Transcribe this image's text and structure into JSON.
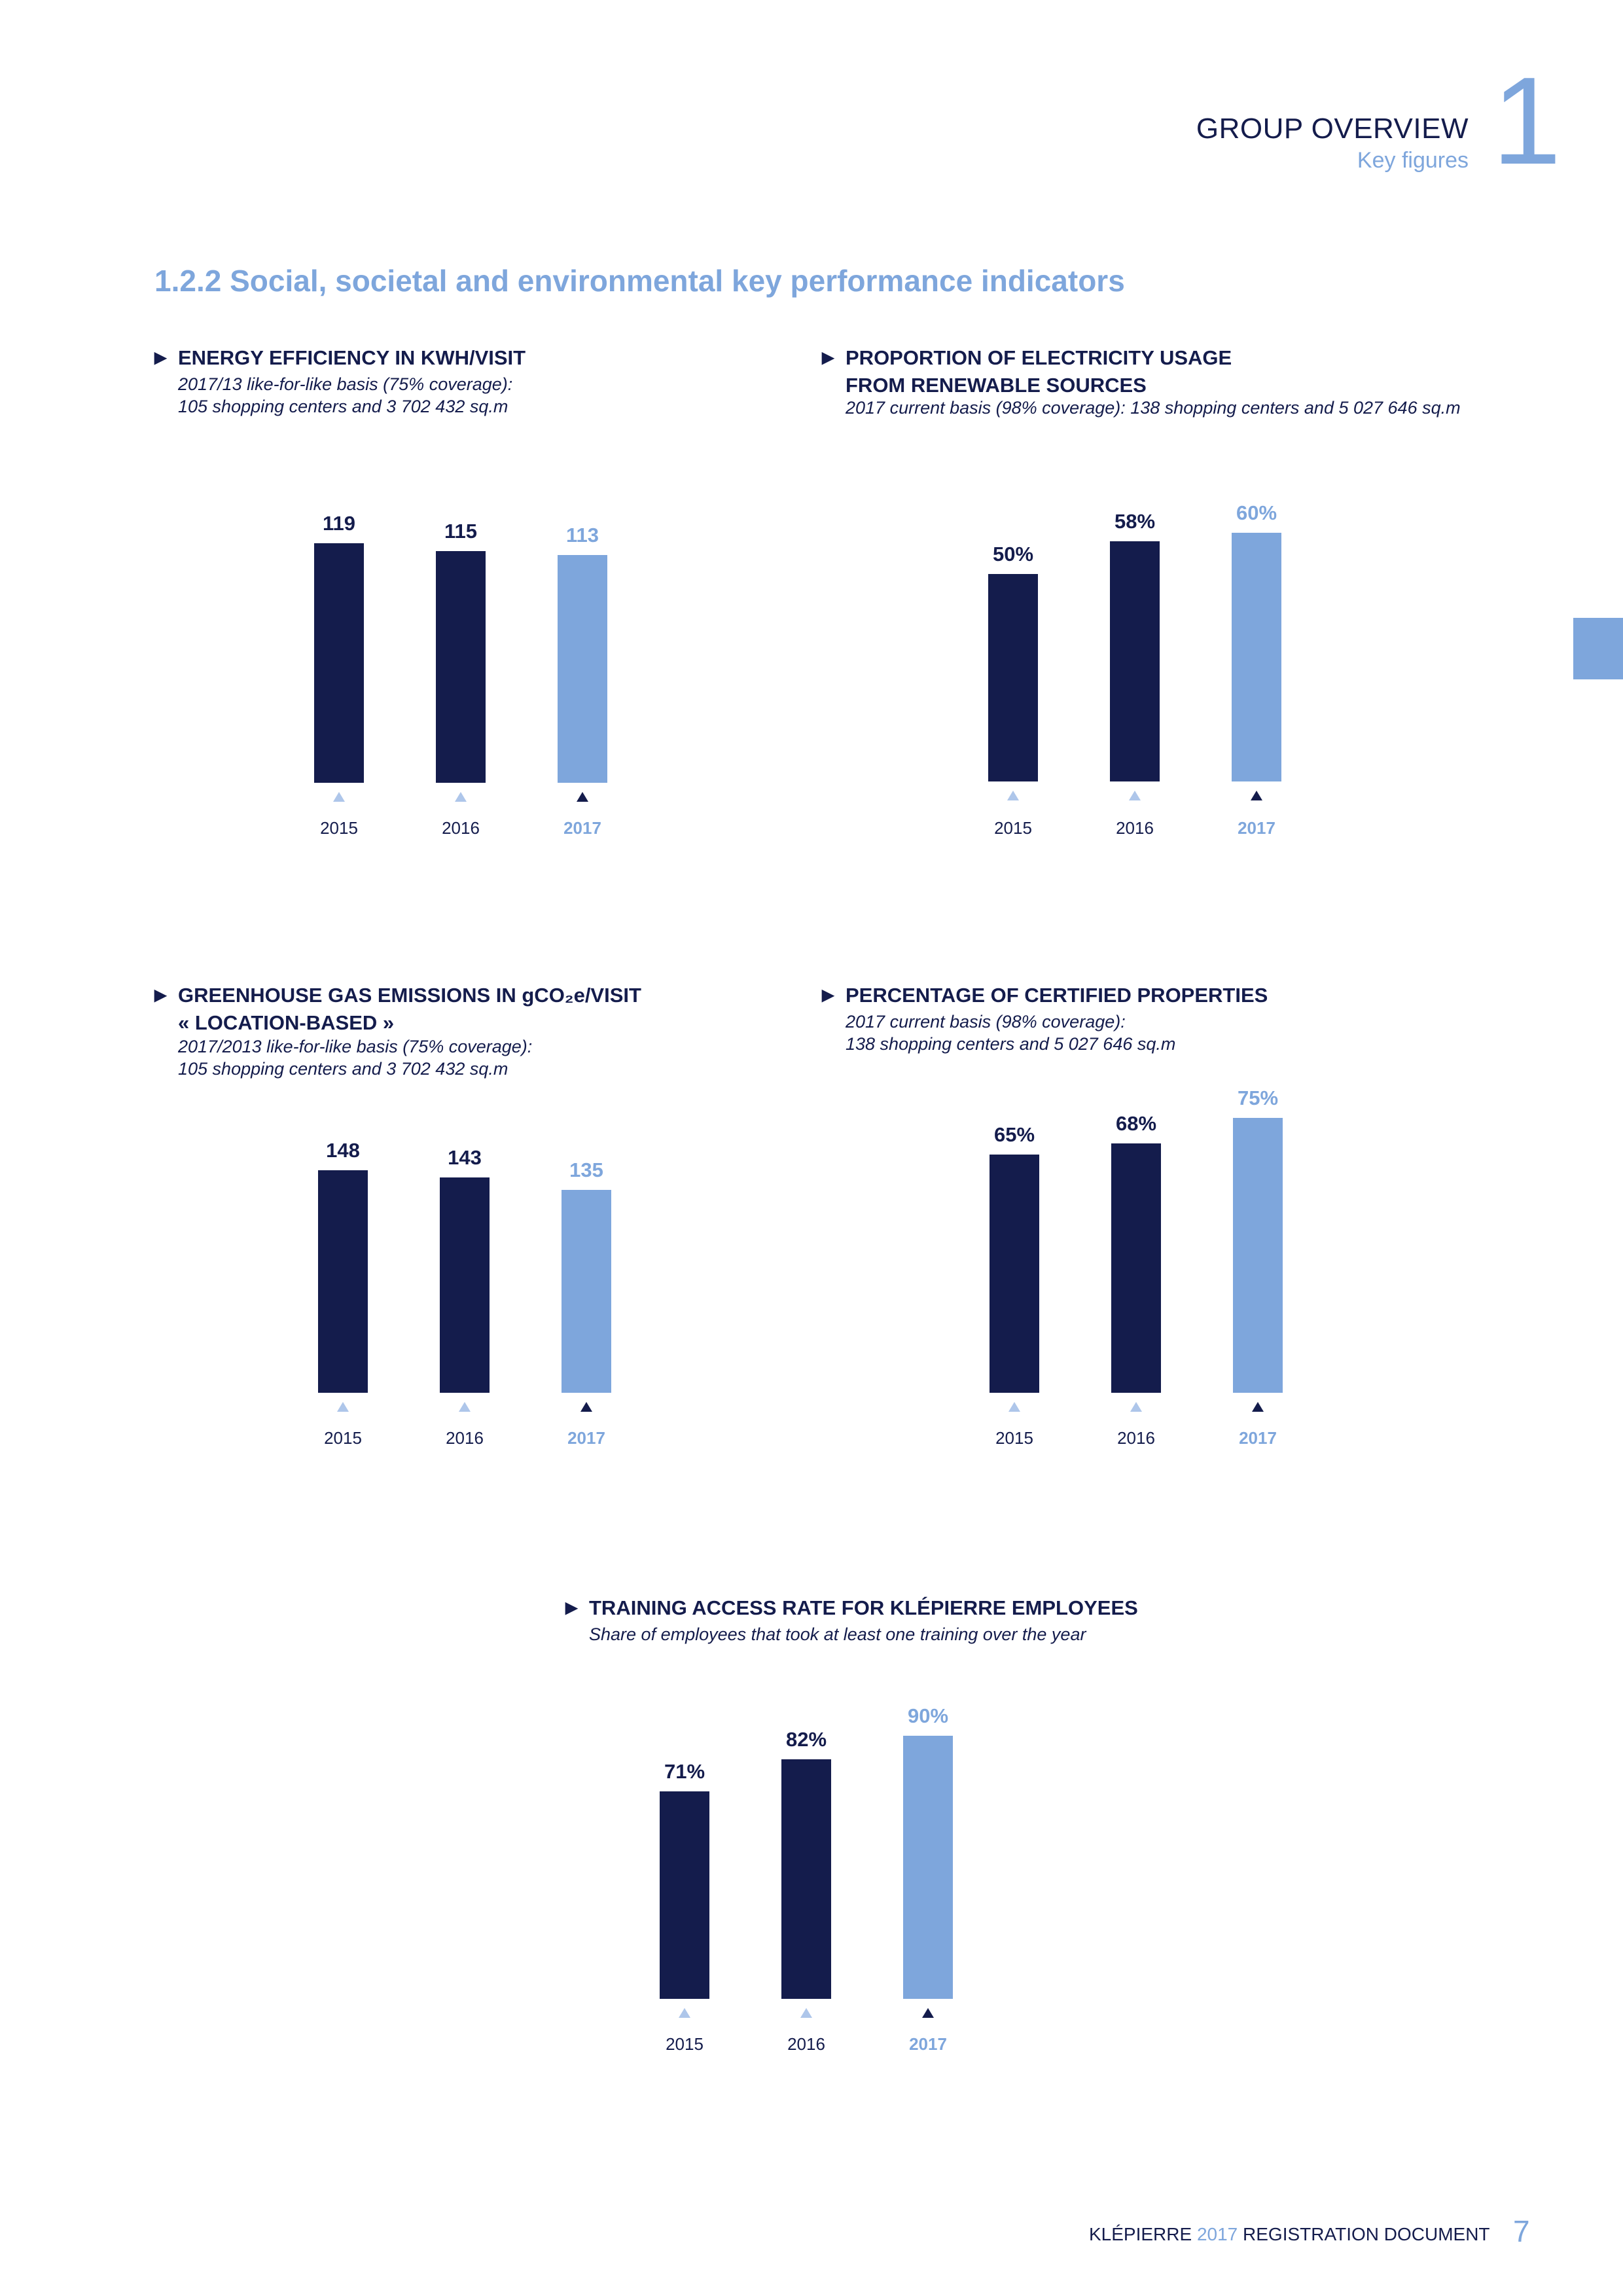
{
  "header": {
    "title": "GROUP OVERVIEW",
    "subtitle": "Key figures",
    "chapter_number": "1"
  },
  "section_title": "1.2.2  Social, societal and environmental key performance indicators",
  "footer": {
    "brand": "KLÉPIERRE",
    "year": "2017",
    "doc": "REGISTRATION DOCUMENT",
    "page_number": "7"
  },
  "colors": {
    "dark": "#141c4c",
    "accent": "#7ea6dc"
  },
  "chart_data": [
    {
      "type": "bar",
      "title_lines": [
        "ENERGY EFFICIENCY IN KWH/VISIT"
      ],
      "subtitle_lines": [
        "2017/13 like-for-like basis (75% coverage):",
        "105 shopping centers and 3 702 432 sq.m"
      ],
      "categories": [
        "2015",
        "2016",
        "2017"
      ],
      "values": [
        119,
        115,
        113
      ],
      "labels": [
        "119",
        "115",
        "113"
      ],
      "ylim": [
        0,
        119
      ],
      "highlight_index": 2
    },
    {
      "type": "bar",
      "title_lines": [
        "PROPORTION OF ELECTRICITY USAGE",
        "FROM RENEWABLE SOURCES"
      ],
      "subtitle_lines": [
        "2017 current basis (98% coverage): 138 shopping centers and 5 027 646 sq.m"
      ],
      "categories": [
        "2015",
        "2016",
        "2017"
      ],
      "values": [
        50,
        58,
        60
      ],
      "labels": [
        "50%",
        "58%",
        "60%"
      ],
      "ylim": [
        0,
        60
      ],
      "highlight_index": 2
    },
    {
      "type": "bar",
      "title_lines": [
        "GREENHOUSE GAS EMISSIONS IN gCO₂e/VISIT",
        "« LOCATION-BASED »"
      ],
      "subtitle_lines": [
        "2017/2013 like-for-like basis (75% coverage):",
        "105 shopping centers and 3 702 432 sq.m"
      ],
      "categories": [
        "2015",
        "2016",
        "2017"
      ],
      "values": [
        148,
        143,
        135
      ],
      "labels": [
        "148",
        "143",
        "135"
      ],
      "ylim": [
        0,
        148
      ],
      "highlight_index": 2
    },
    {
      "type": "bar",
      "title_lines": [
        "PERCENTAGE OF CERTIFIED PROPERTIES"
      ],
      "subtitle_lines": [
        "2017 current basis (98% coverage):",
        "138 shopping centers and 5 027 646 sq.m"
      ],
      "categories": [
        "2015",
        "2016",
        "2017"
      ],
      "values": [
        65,
        68,
        75
      ],
      "labels": [
        "65%",
        "68%",
        "75%"
      ],
      "ylim": [
        0,
        75
      ],
      "highlight_index": 2
    },
    {
      "type": "bar",
      "title_lines": [
        "TRAINING ACCESS RATE FOR KLÉPIERRE EMPLOYEES"
      ],
      "subtitle_lines": [
        "Share of employees that took at least one training over the year"
      ],
      "categories": [
        "2015",
        "2016",
        "2017"
      ],
      "values": [
        71,
        82,
        90
      ],
      "labels": [
        "71%",
        "82%",
        "90%"
      ],
      "ylim": [
        0,
        90
      ],
      "highlight_index": 2
    }
  ]
}
